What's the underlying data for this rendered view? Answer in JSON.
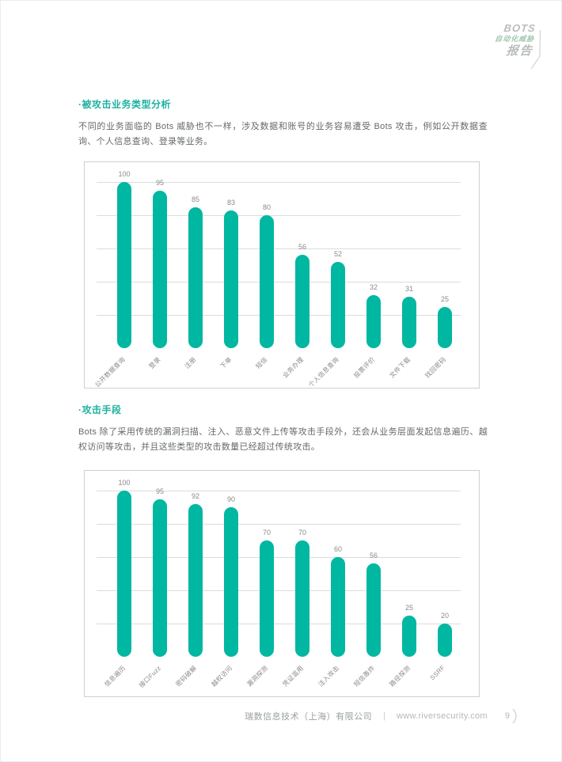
{
  "logo": {
    "line1": "BOTS",
    "line2": "自动化威胁",
    "line3": "报告"
  },
  "sections": [
    {
      "heading": "·被攻击业务类型分析",
      "paragraph": "不同的业务面临的 Bots 威胁也不一样，涉及数据和账号的业务容易遭受 Bots 攻击，例如公开数据查询、个人信息查询、登录等业务。"
    },
    {
      "heading": "·攻击手段",
      "paragraph": "Bots 除了采用传统的漏洞扫描、注入、恶意文件上传等攻击手段外，还会从业务层面发起信息遍历、越权访问等攻击，并且这些类型的攻击数量已经超过传统攻击。"
    }
  ],
  "chart_data": [
    {
      "type": "bar",
      "title": "被攻击业务类型分析",
      "categories": [
        "公开数据查询",
        "登录",
        "注册",
        "下单",
        "短信",
        "业务办理",
        "个人信息查询",
        "投票评价",
        "文件下载",
        "找回密码"
      ],
      "values": [
        100,
        95,
        85,
        83,
        80,
        56,
        52,
        32,
        31,
        25
      ],
      "xlabel": "",
      "ylabel": "",
      "ylim": [
        0,
        110
      ],
      "gridline_values": [
        20,
        40,
        60,
        80,
        100
      ],
      "grid": true,
      "legend": "none",
      "bar_color": "#00b7a2",
      "data_labels": true
    },
    {
      "type": "bar",
      "title": "攻击手段",
      "categories": [
        "信息遍历",
        "接口Fuzz",
        "密码破解",
        "越权访问",
        "漏洞探测",
        "凭证滥用",
        "注入攻击",
        "短信轰炸",
        "路径探测",
        "SSRF"
      ],
      "values": [
        100,
        95,
        92,
        90,
        70,
        70,
        60,
        56,
        25,
        20
      ],
      "xlabel": "",
      "ylabel": "",
      "ylim": [
        0,
        110
      ],
      "gridline_values": [
        20,
        40,
        60,
        80,
        100
      ],
      "grid": true,
      "legend": "none",
      "bar_color": "#00b7a2",
      "data_labels": true
    }
  ],
  "footer": {
    "company": "瑞数信息技术（上海）有限公司",
    "divider": "|",
    "website": "www.riversecurity.com",
    "page_number": "9"
  },
  "colors": {
    "accent_teal": "#00b7a2",
    "heading_teal": "#1db1a0",
    "body_text": "#666a69",
    "grid_gray": "#dcdcdc",
    "panel_border": "#cfcfcf",
    "footer_gray": "#9aa09f"
  }
}
